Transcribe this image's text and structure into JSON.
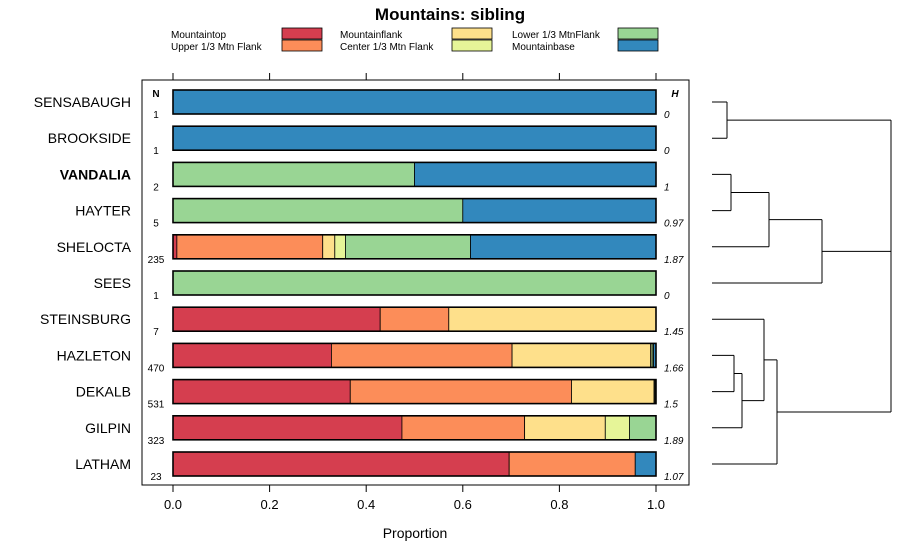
{
  "chart_data": {
    "type": "stacked-bar",
    "title": "Mountains: sibling",
    "xlabel": "Proportion",
    "xlim": [
      0,
      1
    ],
    "ticks": [
      "0.0",
      "0.2",
      "0.4",
      "0.6",
      "0.8",
      "1.0"
    ],
    "tick_values": [
      0,
      0.2,
      0.4,
      0.6,
      0.8,
      1.0
    ],
    "n_header": "N",
    "h_header": "H",
    "legend": [
      {
        "name": "Mountaintop",
        "color": "#d53e4f"
      },
      {
        "name": "Mountainflank",
        "color": "#fee08b"
      },
      {
        "name": "Lower 1/3 MtnFlank",
        "color": "#99d594"
      },
      {
        "name": "Upper 1/3 Mtn Flank",
        "color": "#fc8d59"
      },
      {
        "name": "Center 1/3 Mtn Flank",
        "color": "#e6f598"
      },
      {
        "name": "Mountainbase",
        "color": "#3288bd"
      }
    ],
    "series_order": [
      "Mountaintop",
      "Upper 1/3 Mtn Flank",
      "Mountainflank",
      "Center 1/3 Mtn Flank",
      "Lower 1/3 MtnFlank",
      "Mountainbase"
    ],
    "rows": [
      {
        "site": "SENSABAUGH",
        "n": "1",
        "h": "0",
        "bold": false,
        "values": [
          0,
          0,
          0,
          0,
          0,
          1.0
        ]
      },
      {
        "site": "BROOKSIDE",
        "n": "1",
        "h": "0",
        "bold": false,
        "values": [
          0,
          0,
          0,
          0,
          0,
          1.0
        ]
      },
      {
        "site": "VANDALIA",
        "n": "2",
        "h": "1",
        "bold": true,
        "values": [
          0,
          0,
          0,
          0,
          0.5,
          0.5
        ]
      },
      {
        "site": "HAYTER",
        "n": "5",
        "h": "0.97",
        "bold": false,
        "values": [
          0,
          0,
          0,
          0,
          0.6,
          0.4
        ]
      },
      {
        "site": "SHELOCTA",
        "n": "235",
        "h": "1.87",
        "bold": false,
        "values": [
          0.008,
          0.302,
          0.025,
          0.022,
          0.259,
          0.384
        ]
      },
      {
        "site": "SEES",
        "n": "1",
        "h": "0",
        "bold": false,
        "values": [
          0,
          0,
          0,
          0,
          1.0,
          0
        ]
      },
      {
        "site": "STEINSBURG",
        "n": "7",
        "h": "1.45",
        "bold": false,
        "values": [
          0.429,
          0.142,
          0.429,
          0,
          0,
          0
        ]
      },
      {
        "site": "HAZLETON",
        "n": "470",
        "h": "1.66",
        "bold": false,
        "values": [
          0.328,
          0.374,
          0.287,
          0.003,
          0.003,
          0.005
        ]
      },
      {
        "site": "DEKALB",
        "n": "531",
        "h": "1.5",
        "bold": false,
        "values": [
          0.367,
          0.458,
          0.171,
          0.002,
          0.002,
          0
        ]
      },
      {
        "site": "GILPIN",
        "n": "323",
        "h": "1.89",
        "bold": false,
        "values": [
          0.474,
          0.254,
          0.167,
          0.05,
          0.055,
          0
        ]
      },
      {
        "site": "LATHAM",
        "n": "23",
        "h": "1.07",
        "bold": false,
        "values": [
          0.696,
          0.261,
          0,
          0,
          0,
          0.043
        ]
      }
    ],
    "dendrogram": "clustering of sites (right side)"
  }
}
